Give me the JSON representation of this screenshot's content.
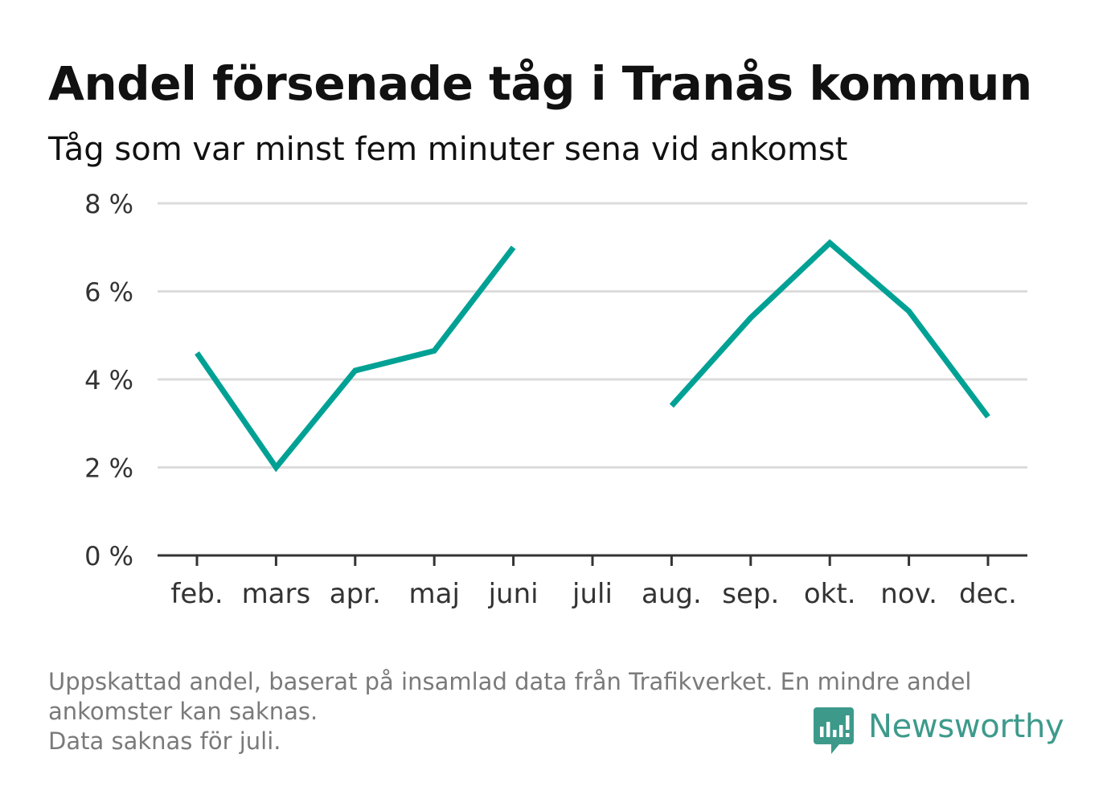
{
  "title": "Andel försenade tåg i Tranås kommun",
  "subtitle": "Tåg som var minst fem minuter sena vid ankomst",
  "footnote": {
    "line1": "Uppskattad andel, baserat på insamlad data från Trafikverket. En mindre andel",
    "line2": "ankomster kan saknas.",
    "line3": "Data saknas för juli."
  },
  "brand": {
    "name": "Newsworthy",
    "color": "#3d9a8b",
    "icon": "newsworthy-logo-icon"
  },
  "colors": {
    "line": "#00a195",
    "grid": "#dcdcdc",
    "axis": "#333333",
    "tick_label": "#333333",
    "footnote": "#7a7a7a"
  },
  "chart_data": {
    "type": "line",
    "categories": [
      "feb.",
      "mars",
      "apr.",
      "maj",
      "juni",
      "juli",
      "aug.",
      "sep.",
      "okt.",
      "nov.",
      "dec."
    ],
    "series": [
      {
        "values": [
          4.6,
          2.0,
          4.2,
          4.65,
          7.0,
          null,
          3.4,
          5.4,
          7.1,
          5.55,
          3.15
        ]
      }
    ],
    "ylim": [
      0,
      8
    ],
    "yticks": [
      0,
      2,
      4,
      6,
      8
    ],
    "ytick_labels": [
      "0 %",
      "2 %",
      "4 %",
      "6 %",
      "8 %"
    ],
    "xlabel": "",
    "ylabel": "",
    "grid": true,
    "legend": "none"
  }
}
